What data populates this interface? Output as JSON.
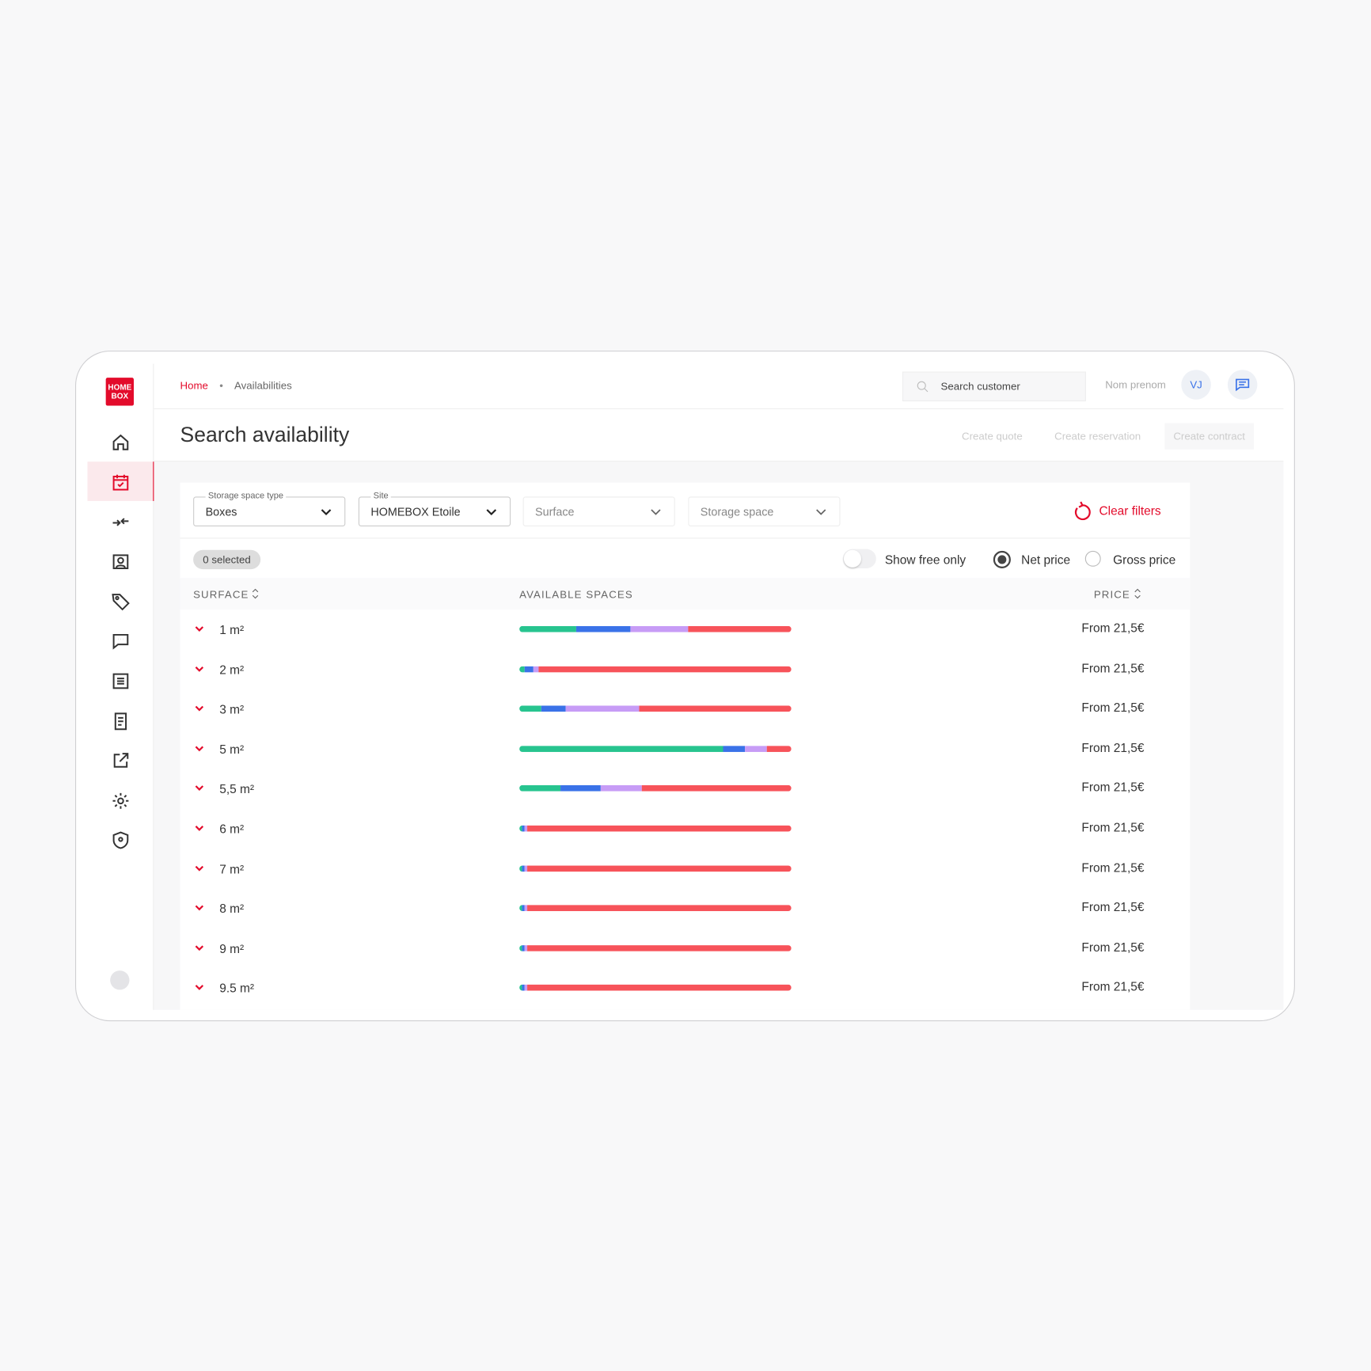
{
  "logo": [
    "HOME",
    "BOX"
  ],
  "header": {
    "breadcrumb": [
      "Home",
      "Availabilities"
    ],
    "search_placeholder": "Search customer",
    "user_name": "Nom prenom",
    "user_initials": "VJ"
  },
  "page": {
    "title": "Search availability",
    "actions": [
      "Create quote",
      "Create reservation",
      "Create contract"
    ]
  },
  "filters": {
    "fields": [
      {
        "label": "Storage space type",
        "value": "Boxes"
      },
      {
        "label": "Site",
        "value": "HOMEBOX Etoile"
      },
      {
        "placeholder": "Surface"
      },
      {
        "placeholder": "Storage space"
      }
    ],
    "clear": "Clear filters"
  },
  "toolbar": {
    "selected": "0 selected",
    "free_only": "Show free only",
    "net": "Net price",
    "gross": "Gross price"
  },
  "table": {
    "columns": [
      "SURFACE",
      "AVAILABLE SPACES",
      "PRICE"
    ],
    "segment_colors": [
      "#27c48f",
      "#3a72e8",
      "#c79cf6",
      "#f7535a"
    ],
    "rows": [
      {
        "surface": "1 m²",
        "segments": [
          21,
          20,
          21,
          38
        ],
        "price": "From 21,5€"
      },
      {
        "surface": "2 m²",
        "segments": [
          2,
          3,
          2,
          93
        ],
        "price": "From 21,5€"
      },
      {
        "surface": "3 m²",
        "segments": [
          8,
          9,
          27,
          56
        ],
        "price": "From 21,5€"
      },
      {
        "surface": "5 m²",
        "segments": [
          75,
          8,
          8,
          9
        ],
        "price": "From 21,5€"
      },
      {
        "surface": "5,5 m²",
        "segments": [
          15,
          15,
          15,
          55
        ],
        "price": "From 21,5€"
      },
      {
        "surface": "6 m²",
        "segments": [
          1,
          1,
          1,
          97
        ],
        "price": "From 21,5€"
      },
      {
        "surface": "7 m²",
        "segments": [
          1,
          1,
          1,
          97
        ],
        "price": "From 21,5€"
      },
      {
        "surface": "8 m²",
        "segments": [
          1,
          1,
          1,
          97
        ],
        "price": "From 21,5€"
      },
      {
        "surface": "9 m²",
        "segments": [
          1,
          1,
          1,
          97
        ],
        "price": "From 21,5€"
      },
      {
        "surface": "9.5 m²",
        "segments": [
          1,
          1,
          1,
          97
        ],
        "price": "From 21,5€"
      }
    ]
  }
}
